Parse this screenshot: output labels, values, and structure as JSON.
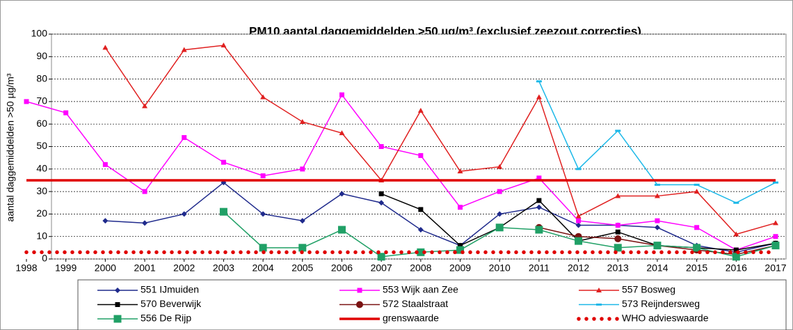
{
  "chart_data": {
    "type": "line",
    "title": "PM10 aantal daggemiddelden >50 µg/m³  (exclusief zeezout correcties)",
    "y_label": "aantal daggemiddelden >50 µg/m³",
    "x": [
      1998,
      1999,
      2000,
      2001,
      2002,
      2003,
      2004,
      2005,
      2006,
      2007,
      2008,
      2009,
      2010,
      2011,
      2012,
      2013,
      2014,
      2015,
      2016,
      2017
    ],
    "xlim": [
      1998,
      2017
    ],
    "xticks": [
      1998,
      1999,
      2000,
      2001,
      2002,
      2003,
      2004,
      2005,
      2006,
      2007,
      2008,
      2009,
      2010,
      2011,
      2012,
      2013,
      2014,
      2015,
      2016,
      2017
    ],
    "ylim": [
      0,
      100
    ],
    "yticks": [
      0,
      10,
      20,
      30,
      40,
      50,
      60,
      70,
      80,
      90,
      100
    ],
    "grid": true,
    "legend": "bottom",
    "series": [
      {
        "name": "551 IJmuiden",
        "color": "#1f2a8c",
        "marker": "diamond",
        "values": [
          null,
          null,
          17,
          16,
          20,
          34,
          20,
          17,
          29,
          25,
          13,
          6,
          20,
          23,
          15,
          15,
          14,
          6,
          3,
          7
        ]
      },
      {
        "name": "553 Wijk aan Zee",
        "color": "#ff00ff",
        "marker": "square",
        "values": [
          70,
          65,
          42,
          30,
          54,
          43,
          37,
          40,
          73,
          50,
          46,
          23,
          30,
          36,
          17,
          15,
          17,
          14,
          4,
          10
        ]
      },
      {
        "name": "557 Bosweg",
        "color": "#e02020",
        "marker": "triangle",
        "values": [
          null,
          null,
          94,
          68,
          93,
          95,
          72,
          61,
          56,
          35,
          66,
          39,
          41,
          72,
          19,
          28,
          28,
          30,
          11,
          16
        ]
      },
      {
        "name": "570 Beverwijk",
        "color": "#000000",
        "marker": "square",
        "values": [
          null,
          null,
          null,
          null,
          null,
          null,
          null,
          null,
          null,
          29,
          22,
          6,
          14,
          26,
          8,
          12,
          6,
          5,
          4,
          7
        ]
      },
      {
        "name": "572 Staalstraat",
        "color": "#7a1212",
        "marker": "circle",
        "values": [
          null,
          null,
          null,
          null,
          null,
          null,
          null,
          null,
          null,
          null,
          null,
          null,
          null,
          14,
          10,
          9,
          6,
          4,
          2,
          6
        ]
      },
      {
        "name": "573 Reijndersweg",
        "color": "#1cb8e8",
        "marker": "dash",
        "values": [
          null,
          null,
          null,
          null,
          null,
          null,
          null,
          null,
          null,
          null,
          null,
          null,
          null,
          79,
          40,
          57,
          33,
          33,
          25,
          34
        ]
      },
      {
        "name": "556 De Rijp",
        "color": "#20a066",
        "marker": "bigsquare",
        "values": [
          null,
          null,
          null,
          null,
          null,
          21,
          5,
          5,
          13,
          1,
          3,
          4,
          14,
          13,
          8,
          5,
          6,
          5,
          1,
          6
        ]
      },
      {
        "name": "grenswaarde",
        "color": "#e00000",
        "marker": "thick",
        "values": [
          35,
          35,
          35,
          35,
          35,
          35,
          35,
          35,
          35,
          35,
          35,
          35,
          35,
          35,
          35,
          35,
          35,
          35,
          35,
          35
        ]
      },
      {
        "name": "WHO advieswaarde",
        "color": "#e00000",
        "marker": "dots",
        "values": [
          3,
          3,
          3,
          3,
          3,
          3,
          3,
          3,
          3,
          3,
          3,
          3,
          3,
          3,
          3,
          3,
          3,
          3,
          3,
          3
        ]
      }
    ]
  }
}
